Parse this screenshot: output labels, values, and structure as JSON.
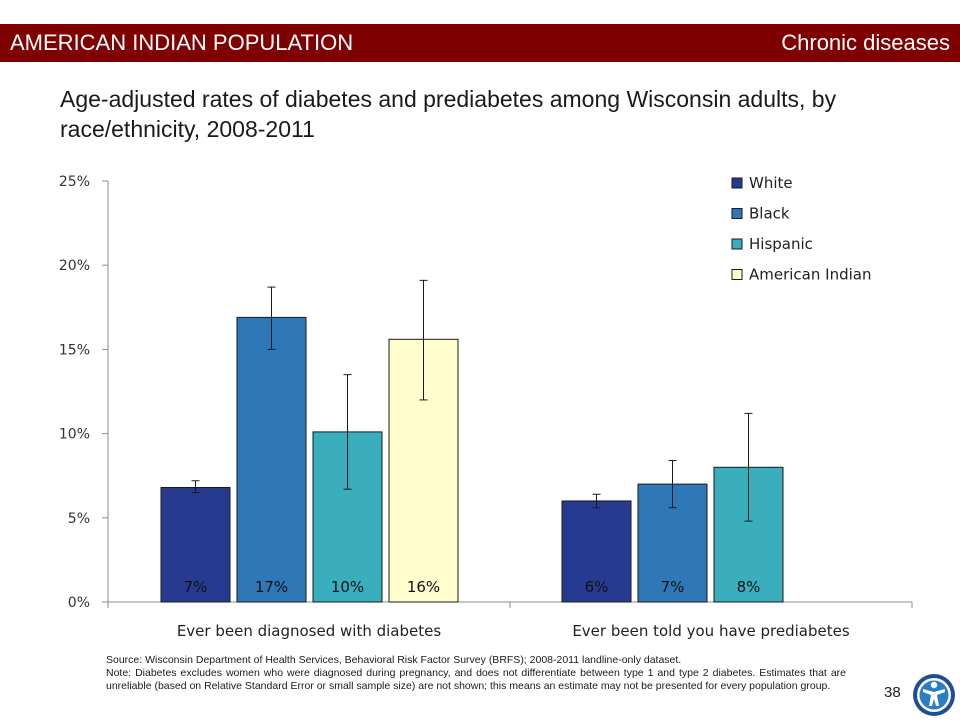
{
  "header": {
    "left_label": "AMERICAN INDIAN POPULATION",
    "right_label": "Chronic diseases",
    "bar_color": "#7f0000"
  },
  "slide_title": "Age-adjusted rates of diabetes and prediabetes among Wisconsin adults, by race/ethnicity, 2008-2011",
  "chart_data": {
    "type": "bar",
    "categories": [
      "Ever been diagnosed with diabetes",
      "Ever been told you have prediabetes"
    ],
    "ylim": [
      0,
      25
    ],
    "yticks": [
      0,
      5,
      10,
      15,
      20,
      25
    ],
    "ytick_labels": [
      "0%",
      "5%",
      "10%",
      "15%",
      "20%",
      "25%"
    ],
    "legend_position": "top-right",
    "grid": false,
    "series": [
      {
        "name": "White",
        "color": "#263a8f",
        "values": [
          6.8,
          6.0
        ],
        "errors": [
          [
            6.5,
            7.2
          ],
          [
            5.6,
            6.4
          ]
        ],
        "labels": [
          "7%",
          "6%"
        ]
      },
      {
        "name": "Black",
        "color": "#2e78b8",
        "values": [
          16.9,
          7.0
        ],
        "errors": [
          [
            15.0,
            18.7
          ],
          [
            5.6,
            8.4
          ]
        ],
        "labels": [
          "17%",
          "7%"
        ]
      },
      {
        "name": "Hispanic",
        "color": "#3aaebc",
        "values": [
          10.1,
          8.0
        ],
        "errors": [
          [
            6.7,
            13.5
          ],
          [
            4.8,
            11.2
          ]
        ],
        "labels": [
          "10%",
          "8%"
        ]
      },
      {
        "name": "American Indian",
        "color": "#fffdcc",
        "values": [
          15.6,
          null
        ],
        "errors": [
          [
            12.0,
            19.1
          ],
          null
        ],
        "labels": [
          "16%",
          null
        ]
      }
    ]
  },
  "footnote": {
    "source": "Source: Wisconsin Department of Health Services, Behavioral Risk Factor Survey (BRFS); 2008-2011 landline-only dataset.",
    "note": "Note: Diabetes excludes women who were diagnosed during pregnancy, and does not differentiate between type 1 and type 2 diabetes. Estimates that are unreliable (based on Relative Standard Error or small sample size) are not shown; this means an estimate may not be presented for every population group."
  },
  "page_number": "38"
}
